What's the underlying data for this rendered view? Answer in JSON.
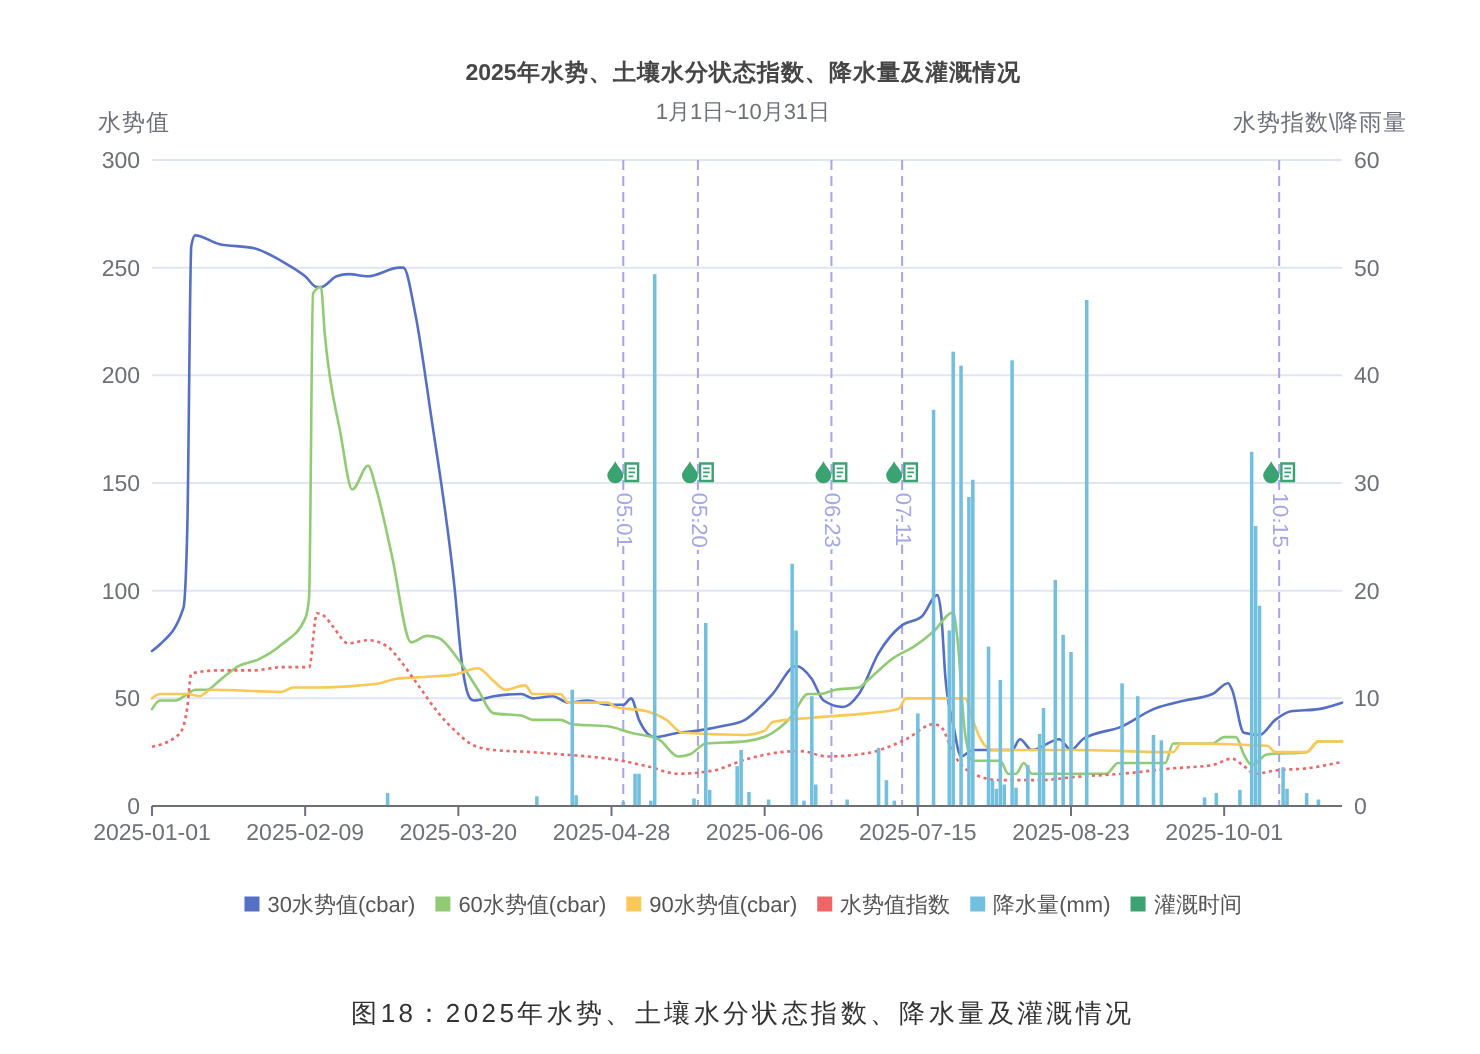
{
  "chart_data": {
    "type": "line",
    "title": "2025年水势、土壤水分状态指数、降水量及灌溉情况",
    "subtitle": "1月1日~10月31日",
    "ylabel": "水势值",
    "y2label": "水势指数\\降雨量",
    "xlim": [
      "2025-01-01",
      "2025-10-31"
    ],
    "xticks": [
      "2025-01-01",
      "2025-02-09",
      "2025-03-20",
      "2025-04-28",
      "2025-06-06",
      "2025-07-15",
      "2025-08-23",
      "2025-10-01"
    ],
    "ylim": [
      0,
      300
    ],
    "yticks": [
      0,
      50,
      100,
      150,
      200,
      250,
      300
    ],
    "y2lim": [
      0,
      60
    ],
    "y2ticks": [
      0,
      10,
      20,
      30,
      40,
      50,
      60
    ],
    "grid": "y",
    "legend": "bottom",
    "series": [
      {
        "name": "30水势值(cbar)",
        "color": "#5470c6",
        "x": [
          "2025-01-01",
          "2025-01-03",
          "2025-01-09",
          "2025-01-10",
          "2025-01-11",
          "2025-01-12",
          "2025-01-18",
          "2025-01-27",
          "2025-02-04",
          "2025-02-09",
          "2025-02-12",
          "2025-02-13",
          "2025-02-17",
          "2025-02-20",
          "2025-02-25",
          "2025-03-05",
          "2025-03-06",
          "2025-03-09",
          "2025-03-13",
          "2025-03-19",
          "2025-03-21",
          "2025-03-23",
          "2025-03-24",
          "2025-03-29",
          "2025-04-05",
          "2025-04-08",
          "2025-04-13",
          "2025-04-17",
          "2025-04-22",
          "2025-04-27",
          "2025-05-01",
          "2025-05-03",
          "2025-05-05",
          "2025-05-09",
          "2025-05-15",
          "2025-05-20",
          "2025-05-26",
          "2025-06-01",
          "2025-06-08",
          "2025-06-14",
          "2025-06-18",
          "2025-06-21",
          "2025-06-26",
          "2025-06-30",
          "2025-07-05",
          "2025-07-11",
          "2025-07-16",
          "2025-07-20",
          "2025-07-21",
          "2025-07-22",
          "2025-07-24",
          "2025-07-26",
          "2025-07-29",
          "2025-08-08",
          "2025-08-10",
          "2025-08-13",
          "2025-08-20",
          "2025-08-23",
          "2025-08-26",
          "2025-09-05",
          "2025-09-13",
          "2025-09-21",
          "2025-09-28",
          "2025-10-02",
          "2025-10-03",
          "2025-10-06",
          "2025-10-10",
          "2025-10-14",
          "2025-10-18",
          "2025-10-25",
          "2025-10-31"
        ],
        "values": [
          72,
          75,
          92,
          130,
          260,
          265,
          261,
          259,
          252,
          246,
          241,
          241,
          246,
          247,
          246,
          250,
          250,
          229,
          182,
          102,
          65,
          50,
          49,
          51,
          52,
          50,
          51,
          48,
          49,
          47,
          47,
          50,
          40,
          32,
          34,
          35,
          37,
          40,
          52,
          65,
          59,
          49,
          46,
          52,
          71,
          84,
          88,
          98,
          88,
          60,
          38,
          23,
          26,
          26,
          31,
          26,
          31,
          26,
          31,
          37,
          45,
          49,
          52,
          57,
          54,
          34,
          33,
          40,
          44,
          45,
          48
        ]
      },
      {
        "name": "60水势值(cbar)",
        "color": "#91cc75",
        "x": [
          "2025-01-01",
          "2025-01-03",
          "2025-01-07",
          "2025-01-10",
          "2025-01-12",
          "2025-01-15",
          "2025-01-18",
          "2025-01-23",
          "2025-01-28",
          "2025-02-03",
          "2025-02-09",
          "2025-02-10",
          "2025-02-11",
          "2025-02-13",
          "2025-02-14",
          "2025-02-18",
          "2025-02-21",
          "2025-02-25",
          "2025-02-27",
          "2025-03-03",
          "2025-03-08",
          "2025-03-12",
          "2025-03-15",
          "2025-03-20",
          "2025-03-25",
          "2025-03-29",
          "2025-04-05",
          "2025-04-08",
          "2025-04-15",
          "2025-04-18",
          "2025-04-27",
          "2025-05-03",
          "2025-05-10",
          "2025-05-15",
          "2025-05-18",
          "2025-05-22",
          "2025-06-01",
          "2025-06-08",
          "2025-06-13",
          "2025-06-17",
          "2025-06-20",
          "2025-06-24",
          "2025-06-30",
          "2025-07-02",
          "2025-07-09",
          "2025-07-14",
          "2025-07-19",
          "2025-07-24",
          "2025-07-25",
          "2025-07-27",
          "2025-07-29",
          "2025-08-05",
          "2025-08-07",
          "2025-08-09",
          "2025-08-11",
          "2025-08-13",
          "2025-09-01",
          "2025-09-04",
          "2025-09-16",
          "2025-09-18",
          "2025-09-28",
          "2025-10-01",
          "2025-10-04",
          "2025-10-06",
          "2025-10-08",
          "2025-10-12",
          "2025-10-22",
          "2025-10-25",
          "2025-10-31"
        ],
        "values": [
          45,
          49,
          49,
          52,
          54,
          54,
          58,
          65,
          68,
          75,
          87,
          97,
          238,
          241,
          219,
          173,
          147,
          158,
          148,
          117,
          76,
          79,
          78,
          68,
          54,
          43,
          42,
          40,
          40,
          38,
          37,
          34,
          31,
          23,
          24,
          29,
          30,
          34,
          42,
          52,
          52,
          54,
          55,
          58,
          69,
          74,
          81,
          90,
          79,
          34,
          21,
          21,
          15,
          15,
          20,
          15,
          15,
          20,
          20,
          29,
          29,
          32,
          32,
          24,
          19,
          24,
          25,
          30,
          30
        ]
      },
      {
        "name": "90水势值(cbar)",
        "color": "#fac858",
        "x": [
          "2025-01-01",
          "2025-01-03",
          "2025-01-10",
          "2025-01-13",
          "2025-01-16",
          "2025-02-03",
          "2025-02-06",
          "2025-02-13",
          "2025-02-23",
          "2025-02-28",
          "2025-03-04",
          "2025-03-12",
          "2025-03-19",
          "2025-03-25",
          "2025-03-29",
          "2025-04-01",
          "2025-04-06",
          "2025-04-08",
          "2025-04-15",
          "2025-04-17",
          "2025-04-27",
          "2025-04-29",
          "2025-05-07",
          "2025-05-12",
          "2025-05-16",
          "2025-06-01",
          "2025-06-06",
          "2025-06-08",
          "2025-06-18",
          "2025-07-02",
          "2025-07-10",
          "2025-07-12",
          "2025-07-27",
          "2025-07-29",
          "2025-07-31",
          "2025-08-03",
          "2025-08-24",
          "2025-09-18",
          "2025-09-20",
          "2025-10-12",
          "2025-10-14",
          "2025-10-22",
          "2025-10-25",
          "2025-10-31"
        ],
        "values": [
          50,
          52,
          52,
          51,
          54,
          53,
          55,
          55,
          56,
          57,
          59,
          60,
          61,
          64,
          58,
          54,
          56,
          52,
          52,
          48,
          48,
          46,
          44,
          40,
          34,
          33,
          35,
          39,
          41,
          43,
          45,
          50,
          50,
          40,
          31,
          26,
          26,
          25,
          29,
          28,
          25,
          25,
          30,
          30
        ]
      },
      {
        "name": "水势值指数",
        "color": "#ee6666",
        "axis": "y2",
        "line_style": "dotted",
        "x": [
          "2025-01-01",
          "2025-01-08",
          "2025-01-10",
          "2025-01-11",
          "2025-01-18",
          "2025-01-27",
          "2025-02-03",
          "2025-02-10",
          "2025-02-12",
          "2025-02-14",
          "2025-02-16",
          "2025-02-20",
          "2025-02-25",
          "2025-03-02",
          "2025-03-05",
          "2025-03-10",
          "2025-03-15",
          "2025-03-20",
          "2025-03-23",
          "2025-03-29",
          "2025-04-08",
          "2025-04-15",
          "2025-04-22",
          "2025-04-29",
          "2025-05-07",
          "2025-05-15",
          "2025-05-24",
          "2025-06-01",
          "2025-06-10",
          "2025-06-15",
          "2025-06-22",
          "2025-07-02",
          "2025-07-12",
          "2025-07-19",
          "2025-07-21",
          "2025-07-24",
          "2025-07-29",
          "2025-08-05",
          "2025-08-15",
          "2025-08-24",
          "2025-09-05",
          "2025-09-18",
          "2025-09-28",
          "2025-10-03",
          "2025-10-06",
          "2025-10-09",
          "2025-10-14",
          "2025-10-22",
          "2025-10-31"
        ],
        "values": [
          5.5,
          6.7,
          9.2,
          12.3,
          12.6,
          12.6,
          12.9,
          12.9,
          17.9,
          17.6,
          16.7,
          15.1,
          15.4,
          14.8,
          13.6,
          11.1,
          8.6,
          6.7,
          5.8,
          5.2,
          5.0,
          4.8,
          4.6,
          4.3,
          3.7,
          3.0,
          3.3,
          4.3,
          5.0,
          5.1,
          4.6,
          4.9,
          6.2,
          7.6,
          7.3,
          4.9,
          3.0,
          2.4,
          2.4,
          2.7,
          3.0,
          3.5,
          3.8,
          4.4,
          3.7,
          3.0,
          3.3,
          3.5,
          4.1
        ]
      },
      {
        "name": "降水量(mm)",
        "color": "#73c0de",
        "type": "bar",
        "axis": "y2",
        "x": [
          "2025-03-02",
          "2025-04-09",
          "2025-04-18",
          "2025-04-19",
          "2025-05-01",
          "2025-05-04",
          "2025-05-05",
          "2025-05-08",
          "2025-05-09",
          "2025-05-19",
          "2025-05-22",
          "2025-05-23",
          "2025-05-30",
          "2025-05-31",
          "2025-06-02",
          "2025-06-07",
          "2025-06-13",
          "2025-06-14",
          "2025-06-16",
          "2025-06-18",
          "2025-06-19",
          "2025-06-27",
          "2025-07-05",
          "2025-07-07",
          "2025-07-09",
          "2025-07-15",
          "2025-07-19",
          "2025-07-23",
          "2025-07-24",
          "2025-07-26",
          "2025-07-28",
          "2025-07-29",
          "2025-08-02",
          "2025-08-03",
          "2025-08-04",
          "2025-08-05",
          "2025-08-06",
          "2025-08-08",
          "2025-08-09",
          "2025-08-12",
          "2025-08-15",
          "2025-08-16",
          "2025-08-19",
          "2025-08-21",
          "2025-08-23",
          "2025-08-27",
          "2025-09-05",
          "2025-09-09",
          "2025-09-13",
          "2025-09-15",
          "2025-09-26",
          "2025-09-29",
          "2025-10-05",
          "2025-10-08",
          "2025-10-09",
          "2025-10-10",
          "2025-10-16",
          "2025-10-17",
          "2025-10-22",
          "2025-10-25"
        ],
        "values": [
          1.2,
          0.9,
          10.8,
          1.0,
          0.4,
          3.0,
          3.0,
          0.5,
          49.4,
          0.7,
          17.0,
          1.5,
          3.7,
          5.2,
          1.3,
          0.6,
          22.5,
          16.3,
          0.5,
          10.2,
          2.0,
          0.6,
          5.4,
          2.4,
          0.5,
          8.6,
          36.8,
          16.3,
          42.2,
          40.9,
          28.7,
          30.3,
          14.8,
          2.4,
          1.6,
          11.7,
          2.0,
          41.4,
          1.7,
          3.8,
          6.7,
          9.1,
          21.0,
          15.9,
          14.3,
          47.0,
          11.4,
          10.2,
          6.6,
          6.1,
          0.8,
          1.2,
          1.5,
          32.9,
          26.0,
          18.6,
          3.6,
          1.6,
          1.2,
          0.6
        ]
      },
      {
        "name": "灌溉时间",
        "color": "#3ba272",
        "type": "scatter",
        "axis": "y2",
        "x": [
          "2025-05-01",
          "2025-05-20",
          "2025-06-23",
          "2025-07-11",
          "2025-10-15"
        ],
        "values": [
          31,
          31,
          31,
          31,
          31
        ]
      }
    ],
    "ref_lines": [
      {
        "axis": "x",
        "value": "2025-05-01",
        "label": "05.01",
        "color": "#a5a5ea",
        "line_style": "dashed"
      },
      {
        "axis": "x",
        "value": "2025-05-20",
        "label": "05.20",
        "color": "#a5a5ea",
        "line_style": "dashed"
      },
      {
        "axis": "x",
        "value": "2025-06-23",
        "label": "06.23",
        "color": "#a5a5ea",
        "line_style": "dashed"
      },
      {
        "axis": "x",
        "value": "2025-07-11",
        "label": "07.11",
        "color": "#a5a5ea",
        "line_style": "dashed"
      },
      {
        "axis": "x",
        "value": "2025-10-15",
        "label": "10.15",
        "color": "#a5a5ea",
        "line_style": "dashed"
      }
    ],
    "annotations": [
      "图18：2025年水势、土壤水分状态指数、降水量及灌溉情况"
    ]
  }
}
